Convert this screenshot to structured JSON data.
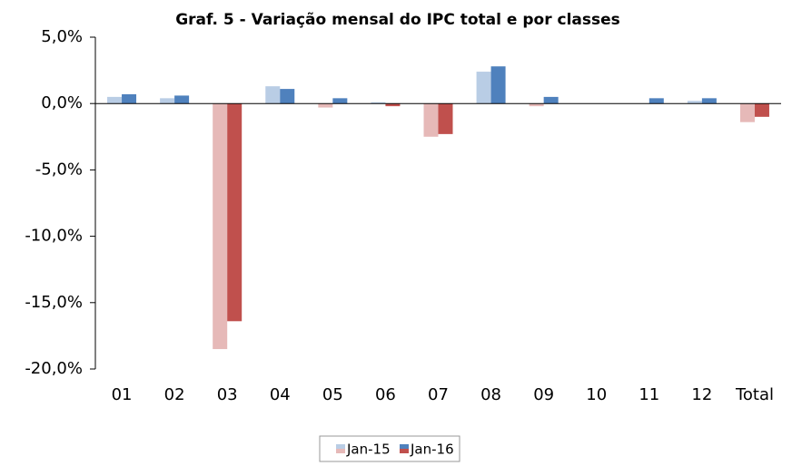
{
  "chart_data": {
    "type": "bar",
    "title": "Graf. 5 - Variação mensal do IPC total e por classes",
    "categories": [
      "01",
      "02",
      "03",
      "04",
      "05",
      "06",
      "07",
      "08",
      "09",
      "10",
      "11",
      "12",
      "Total"
    ],
    "series": [
      {
        "name": "Jan-15",
        "color": "#b9cde5",
        "negative_color": "#e6b9b8",
        "values": [
          0.5,
          0.4,
          -18.5,
          1.3,
          -0.3,
          0.1,
          -2.5,
          2.4,
          -0.2,
          0,
          0,
          0.2,
          -1.4
        ]
      },
      {
        "name": "Jan-16",
        "color": "#4f81bd",
        "negative_color": "#c0504d",
        "values": [
          0.7,
          0.6,
          -16.4,
          1.1,
          0.4,
          -0.2,
          -2.3,
          2.8,
          0.5,
          0,
          0.4,
          0.4,
          -1.0
        ]
      }
    ],
    "ylim": [
      -20,
      5
    ],
    "yticks": [
      {
        "value": 5,
        "label": "5,0%"
      },
      {
        "value": 0,
        "label": "0,0%"
      },
      {
        "value": -5,
        "label": "-5,0%"
      },
      {
        "value": -10,
        "label": "-10,0%"
      },
      {
        "value": -15,
        "label": "-15,0%"
      },
      {
        "value": -20,
        "label": "-20,0%"
      }
    ],
    "grid": false,
    "legend": "bottom"
  }
}
